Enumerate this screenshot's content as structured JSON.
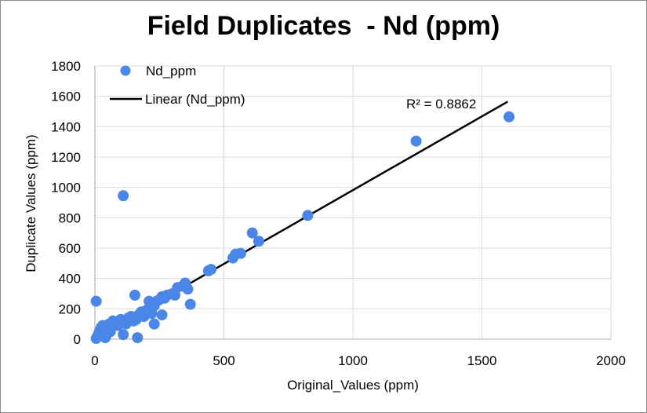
{
  "chart_data": {
    "type": "scatter",
    "title": "Field Duplicates  - Nd (ppm)",
    "xlabel": "Original_Values (ppm)",
    "ylabel": "Duplicate Values (ppm)",
    "xlim": [
      0,
      2000
    ],
    "ylim": [
      0,
      1800
    ],
    "xticks": [
      0,
      500,
      1000,
      1500,
      2000
    ],
    "yticks": [
      0,
      200,
      400,
      600,
      800,
      1000,
      1200,
      1400,
      1600,
      1800
    ],
    "xtick_labels": [
      "0",
      "500",
      "1000",
      "1500",
      "2000"
    ],
    "ytick_labels": [
      "0",
      "200",
      "400",
      "600",
      "800",
      "1000",
      "1200",
      "1400",
      "1600",
      "1800"
    ],
    "grid": true,
    "legend_position": "top-left",
    "legend": [
      {
        "label": "Nd_ppm",
        "kind": "marker"
      },
      {
        "label": "Linear (Nd_ppm)",
        "kind": "line"
      }
    ],
    "annotation": "R² = 0.8862",
    "colors": {
      "points": "#4a86e8",
      "trendline": "#000000",
      "grid": "#d9d9d9"
    },
    "series": [
      {
        "name": "Nd_ppm",
        "points": [
          [
            5,
            5
          ],
          [
            10,
            20
          ],
          [
            15,
            40
          ],
          [
            20,
            60
          ],
          [
            25,
            80
          ],
          [
            30,
            90
          ],
          [
            35,
            50
          ],
          [
            40,
            10
          ],
          [
            45,
            30
          ],
          [
            50,
            70
          ],
          [
            55,
            100
          ],
          [
            60,
            50
          ],
          [
            70,
            120
          ],
          [
            80,
            110
          ],
          [
            90,
            90
          ],
          [
            100,
            130
          ],
          [
            110,
            120
          ],
          [
            120,
            100
          ],
          [
            130,
            140
          ],
          [
            140,
            150
          ],
          [
            150,
            120
          ],
          [
            160,
            130
          ],
          [
            170,
            160
          ],
          [
            180,
            180
          ],
          [
            190,
            150
          ],
          [
            200,
            190
          ],
          [
            210,
            200
          ],
          [
            220,
            170
          ],
          [
            230,
            220
          ],
          [
            240,
            250
          ],
          [
            250,
            260
          ],
          [
            260,
            280
          ],
          [
            270,
            270
          ],
          [
            280,
            290
          ],
          [
            300,
            300
          ],
          [
            310,
            290
          ],
          [
            320,
            340
          ],
          [
            340,
            350
          ],
          [
            350,
            370
          ],
          [
            360,
            330
          ],
          [
            5,
            250
          ],
          [
            110,
            30
          ],
          [
            165,
            10
          ],
          [
            210,
            250
          ],
          [
            155,
            290
          ],
          [
            230,
            100
          ],
          [
            260,
            160
          ],
          [
            370,
            230
          ],
          [
            110,
            945
          ],
          [
            440,
            450
          ],
          [
            450,
            460
          ],
          [
            535,
            535
          ],
          [
            545,
            560
          ],
          [
            565,
            565
          ],
          [
            610,
            700
          ],
          [
            635,
            645
          ],
          [
            825,
            815
          ],
          [
            1245,
            1305
          ],
          [
            1605,
            1465
          ]
        ]
      }
    ],
    "trendline": {
      "name": "Linear (Nd_ppm)",
      "x": [
        0,
        1600
      ],
      "y": [
        10,
        1565
      ]
    }
  }
}
